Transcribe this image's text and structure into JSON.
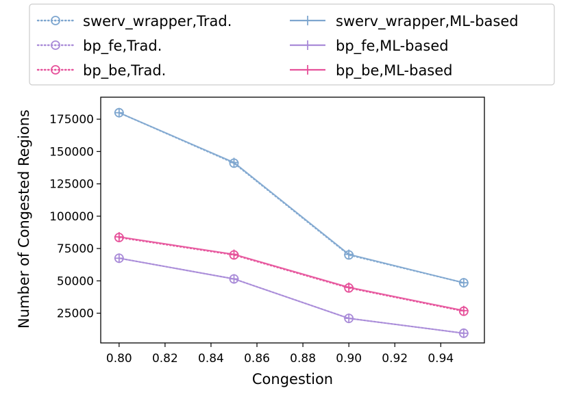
{
  "chart_data": {
    "type": "line",
    "title": "",
    "xlabel": "Congestion",
    "ylabel": "Number of Congested Regions",
    "x": [
      0.8,
      0.85,
      0.9,
      0.95
    ],
    "xlim": [
      0.792,
      0.959
    ],
    "ylim": [
      2000,
      192000
    ],
    "xticks": [
      0.8,
      0.82,
      0.84,
      0.86,
      0.88,
      0.9,
      0.92,
      0.94
    ],
    "xtick_labels": [
      "0.80",
      "0.82",
      "0.84",
      "0.86",
      "0.88",
      "0.90",
      "0.92",
      "0.94"
    ],
    "yticks": [
      25000,
      50000,
      75000,
      100000,
      125000,
      150000,
      175000
    ],
    "ytick_labels": [
      "25000",
      "50000",
      "75000",
      "100000",
      "125000",
      "150000",
      "175000"
    ],
    "grid": false,
    "legend_position": "top, above plot, 2 columns",
    "series": [
      {
        "name": "swerv_wrapper,Trad.",
        "style": "dotted",
        "marker": "circle-dot",
        "color": "#7ea6cf",
        "values": [
          180000,
          141000,
          70000,
          48500
        ]
      },
      {
        "name": "bp_fe,Trad.",
        "style": "dotted",
        "marker": "circle-dot",
        "color": "#a98bd8",
        "values": [
          67500,
          51500,
          21000,
          9500
        ]
      },
      {
        "name": "bp_be,Trad.",
        "style": "dotted",
        "marker": "circle-dot",
        "color": "#e6519a",
        "values": [
          83500,
          70000,
          44500,
          26500
        ]
      },
      {
        "name": "swerv_wrapper,ML-based",
        "style": "solid",
        "marker": "plus",
        "color": "#7ea6cf",
        "values": [
          180000,
          141500,
          70500,
          48500
        ]
      },
      {
        "name": "bp_fe,ML-based",
        "style": "solid",
        "marker": "plus",
        "color": "#a98bd8",
        "values": [
          67500,
          51500,
          21000,
          9500
        ]
      },
      {
        "name": "bp_be,ML-based",
        "style": "solid",
        "marker": "plus",
        "color": "#e6519a",
        "values": [
          84000,
          70500,
          45000,
          27000
        ]
      }
    ]
  }
}
